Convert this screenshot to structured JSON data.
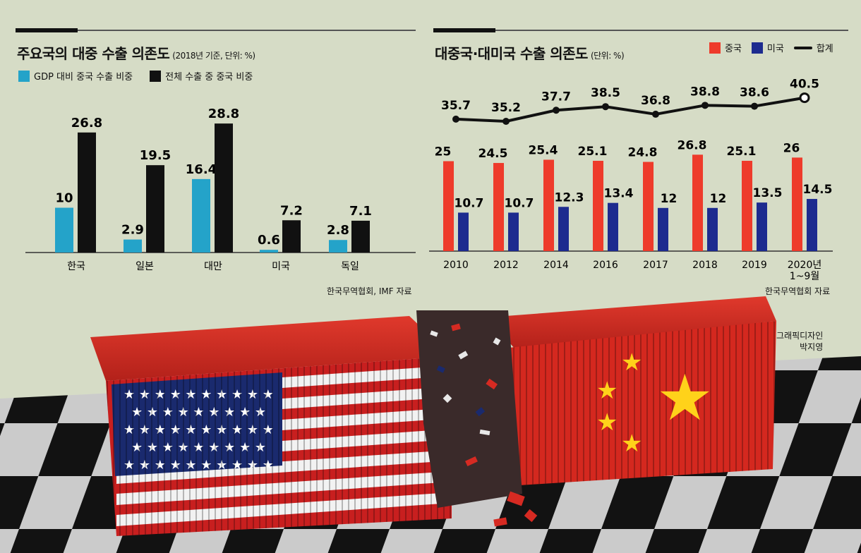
{
  "left_chart": {
    "title": "주요국의 대중 수출 의존도",
    "subtitle": "(2018년 기준, 단위: %)",
    "source": "한국무역협회, IMF 자료",
    "colors": {
      "gdp": "#24a3c9",
      "total": "#111111"
    }
  },
  "right_chart": {
    "title": "대중국·대미국 수출 의존도",
    "subtitle": "(단위: %)",
    "source": "한국무역협회 자료",
    "colors": {
      "china": "#ee3b2b",
      "us": "#1d2b8f",
      "total": "#111111"
    }
  },
  "credit": {
    "line1": "그래픽디자인",
    "line2": "박지영"
  },
  "chart_data": [
    {
      "type": "bar",
      "categories": [
        "한국",
        "일본",
        "대만",
        "미국",
        "독일"
      ],
      "series": [
        {
          "name": "GDP 대비 중국 수출 비중",
          "values": [
            10,
            2.9,
            16.4,
            0.6,
            2.8
          ]
        },
        {
          "name": "전체 수출 중 중국 비중",
          "values": [
            26.8,
            19.5,
            28.8,
            7.2,
            7.1
          ]
        }
      ],
      "value_labels": [
        [
          "10",
          "2.9",
          "16.4",
          "0.6",
          "2.8"
        ],
        [
          "26.8",
          "19.5",
          "28.8",
          "7.2",
          "7.1"
        ]
      ],
      "ylim": [
        0,
        30
      ],
      "legend": "top-left"
    },
    {
      "type": "bar",
      "categories": [
        "2010",
        "2012",
        "2014",
        "2016",
        "2017",
        "2018",
        "2019",
        "2020년 1~9월"
      ],
      "series": [
        {
          "name": "중국",
          "values": [
            25,
            24.5,
            25.4,
            25.1,
            24.8,
            26.8,
            25.1,
            26
          ]
        },
        {
          "name": "미국",
          "values": [
            10.7,
            10.7,
            12.3,
            13.4,
            12,
            12,
            13.5,
            14.5
          ]
        }
      ],
      "value_labels": [
        [
          "25",
          "24.5",
          "25.4",
          "25.1",
          "24.8",
          "26.8",
          "25.1",
          "26"
        ],
        [
          "10.7",
          "10.7",
          "12.3",
          "13.4",
          "12",
          "12",
          "13.5",
          "14.5"
        ]
      ],
      "line_series": {
        "name": "합계",
        "values": [
          35.7,
          35.2,
          37.7,
          38.5,
          36.8,
          38.8,
          38.6,
          40.5
        ],
        "labels": [
          "35.7",
          "35.2",
          "37.7",
          "38.5",
          "36.8",
          "38.8",
          "38.6",
          "40.5"
        ]
      },
      "ylim": [
        0,
        30
      ],
      "legend": "top-right"
    }
  ]
}
